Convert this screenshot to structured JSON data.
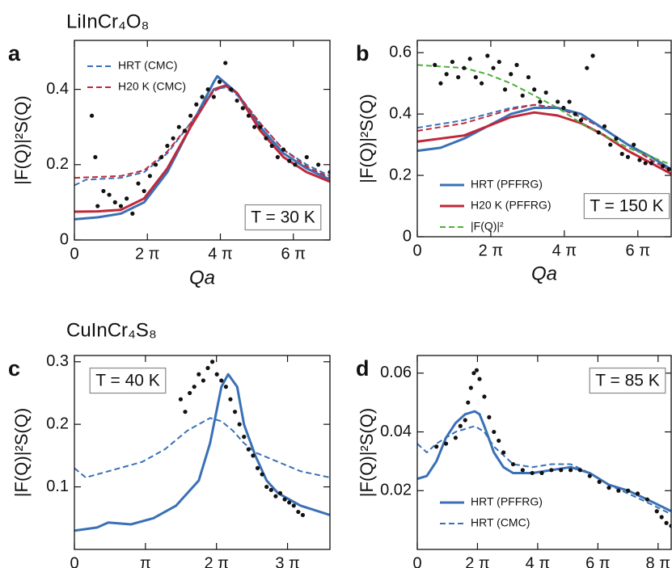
{
  "chart_data": [
    {
      "type": "line",
      "panel": "a",
      "title": "LiInCr₄O₈",
      "xlabel": "Qa",
      "ylabel": "|F(Q)|²S(Q)",
      "annotation": "T = 30 K",
      "legend": "upper left",
      "xlim": [
        0,
        22
      ],
      "ylim": [
        0,
        0.53
      ],
      "xticks": [
        0,
        {
          "value": 6.283,
          "label": "2 π"
        },
        {
          "value": 12.566,
          "label": "4 π"
        },
        {
          "value": 18.85,
          "label": "6 π"
        }
      ],
      "yticks": [
        0,
        0.2,
        0.4
      ],
      "series": [
        {
          "color": "#3a70b5",
          "style": "solid",
          "x": [
            0,
            2,
            4,
            6,
            8,
            10,
            12,
            12.3,
            14,
            16,
            18,
            20,
            22
          ],
          "values": [
            0.055,
            0.06,
            0.07,
            0.1,
            0.18,
            0.3,
            0.42,
            0.435,
            0.39,
            0.3,
            0.23,
            0.19,
            0.16
          ]
        },
        {
          "color": "#c0283a",
          "style": "solid",
          "x": [
            0,
            2,
            4,
            6,
            8,
            10,
            12,
            13,
            14,
            16,
            18,
            20,
            22
          ],
          "values": [
            0.075,
            0.076,
            0.08,
            0.11,
            0.19,
            0.3,
            0.4,
            0.41,
            0.39,
            0.29,
            0.22,
            0.18,
            0.155
          ]
        },
        {
          "name": "HRT (CMC)",
          "color": "#3a70b5",
          "style": "dashed",
          "x": [
            0,
            1,
            4,
            6,
            8,
            10,
            12,
            13,
            14,
            16,
            18,
            20,
            22
          ],
          "values": [
            0.145,
            0.16,
            0.165,
            0.18,
            0.23,
            0.31,
            0.4,
            0.405,
            0.385,
            0.31,
            0.24,
            0.2,
            0.17
          ]
        },
        {
          "name": "H20 K (CMC)",
          "color": "#c0283a",
          "style": "dashed",
          "x": [
            0,
            4,
            6,
            8,
            10,
            12,
            13,
            14,
            16,
            18,
            20,
            22
          ],
          "values": [
            0.165,
            0.17,
            0.185,
            0.235,
            0.31,
            0.395,
            0.41,
            0.39,
            0.31,
            0.24,
            0.195,
            0.165
          ]
        },
        {
          "color": "#111111",
          "style": "markers",
          "x": [
            1.5,
            1.8,
            2,
            2.5,
            3,
            3.5,
            4,
            4.5,
            5,
            5.5,
            6,
            6.5,
            7,
            7.5,
            8,
            8.5,
            9,
            9.5,
            10,
            10.5,
            11,
            11.5,
            12,
            12.5,
            13,
            13.5,
            14,
            14.5,
            15,
            15.5,
            16,
            16.5,
            17,
            17.5,
            18,
            18.5,
            19,
            20,
            21,
            22
          ],
          "values": [
            0.33,
            0.22,
            0.09,
            0.13,
            0.12,
            0.1,
            0.09,
            0.11,
            0.07,
            0.15,
            0.13,
            0.17,
            0.2,
            0.22,
            0.25,
            0.27,
            0.3,
            0.29,
            0.33,
            0.36,
            0.38,
            0.4,
            0.38,
            0.42,
            0.47,
            0.4,
            0.37,
            0.35,
            0.33,
            0.3,
            0.3,
            0.27,
            0.25,
            0.22,
            0.24,
            0.21,
            0.2,
            0.22,
            0.2,
            0.18
          ]
        }
      ]
    },
    {
      "type": "line",
      "panel": "b",
      "xlabel": "Qa",
      "ylabel": "|F(Q)|²S(Q)",
      "annotation": "T = 150 K",
      "legend": "lower left",
      "xlim": [
        0,
        21.7
      ],
      "ylim": [
        0,
        0.64
      ],
      "xticks": [
        0,
        {
          "value": 6.283,
          "label": "2 π"
        },
        {
          "value": 12.566,
          "label": "4 π"
        },
        {
          "value": 18.85,
          "label": "6 π"
        }
      ],
      "yticks": [
        0,
        0.2,
        0.4,
        0.6
      ],
      "series": [
        {
          "color": "#3a70b5",
          "style": "dashed",
          "x": [
            0,
            4,
            8,
            10,
            12,
            14,
            16,
            18,
            20,
            21.7
          ],
          "values": [
            0.355,
            0.38,
            0.42,
            0.43,
            0.42,
            0.39,
            0.35,
            0.3,
            0.25,
            0.215
          ]
        },
        {
          "color": "#c0283a",
          "style": "dashed",
          "x": [
            0,
            4,
            8,
            10,
            12,
            14,
            16,
            18,
            20,
            21.7
          ],
          "values": [
            0.345,
            0.37,
            0.415,
            0.43,
            0.42,
            0.39,
            0.35,
            0.3,
            0.25,
            0.215
          ]
        },
        {
          "name": "HRT (PFFRG)",
          "color": "#3a70b5",
          "style": "solid",
          "x": [
            0,
            2,
            4,
            6,
            8,
            10,
            12,
            14,
            16,
            18,
            20,
            21.7
          ],
          "values": [
            0.28,
            0.29,
            0.32,
            0.36,
            0.4,
            0.42,
            0.42,
            0.4,
            0.35,
            0.3,
            0.26,
            0.22
          ]
        },
        {
          "name": "H20 K (PFFRG)",
          "color": "#c0283a",
          "style": "solid",
          "x": [
            0,
            4,
            6,
            8,
            10,
            12,
            14,
            16,
            18,
            20,
            21.7
          ],
          "values": [
            0.31,
            0.33,
            0.36,
            0.39,
            0.405,
            0.395,
            0.37,
            0.33,
            0.28,
            0.24,
            0.205
          ]
        },
        {
          "name": "|F(Q)|²",
          "color": "#4caf3a",
          "style": "dashed",
          "x": [
            0,
            4,
            6,
            8,
            10,
            12,
            14,
            16,
            18,
            20,
            21.7
          ],
          "values": [
            0.56,
            0.55,
            0.53,
            0.5,
            0.46,
            0.42,
            0.37,
            0.33,
            0.29,
            0.26,
            0.235
          ]
        },
        {
          "color": "#111111",
          "style": "markers",
          "x": [
            1.5,
            2,
            2.5,
            3,
            3.5,
            4,
            4.5,
            5,
            5.5,
            6,
            6.5,
            7,
            7.5,
            8,
            8.5,
            9,
            9.5,
            10,
            10.5,
            11,
            12,
            12.5,
            13,
            13.5,
            14,
            14.5,
            15,
            15.5,
            16,
            16.5,
            17,
            17.5,
            18,
            18.5,
            19,
            19.5,
            20,
            21,
            21.5
          ],
          "values": [
            0.56,
            0.5,
            0.53,
            0.57,
            0.52,
            0.55,
            0.58,
            0.52,
            0.5,
            0.59,
            0.55,
            0.57,
            0.48,
            0.53,
            0.56,
            0.46,
            0.52,
            0.48,
            0.44,
            0.47,
            0.44,
            0.42,
            0.44,
            0.4,
            0.38,
            0.55,
            0.59,
            0.34,
            0.36,
            0.3,
            0.32,
            0.27,
            0.26,
            0.3,
            0.25,
            0.24,
            0.24,
            0.23,
            0.22
          ]
        }
      ]
    },
    {
      "type": "line",
      "panel": "c",
      "title": "CuInCr₄S₈",
      "ylabel": "|F(Q)|²S(Q)",
      "annotation": "T = 40 K",
      "xlim": [
        0,
        11.3
      ],
      "ylim": [
        0,
        0.31
      ],
      "xticks": [
        0,
        {
          "value": 3.1416,
          "label": "π"
        },
        {
          "value": 6.283,
          "label": "2 π"
        },
        {
          "value": 9.425,
          "label": "3 π"
        }
      ],
      "yticks": [
        0.1,
        0.2,
        0.3
      ],
      "series": [
        {
          "color": "#3a70b5",
          "style": "solid",
          "x": [
            0,
            1,
            1.5,
            2.5,
            3.5,
            4.5,
            5.5,
            6,
            6.5,
            6.8,
            7.2,
            7.5,
            8,
            8.5,
            9,
            10,
            11.3
          ],
          "values": [
            0.03,
            0.035,
            0.043,
            0.04,
            0.05,
            0.07,
            0.11,
            0.17,
            0.26,
            0.28,
            0.26,
            0.2,
            0.15,
            0.11,
            0.09,
            0.07,
            0.055
          ]
        },
        {
          "color": "#3a70b5",
          "style": "dashed",
          "x": [
            0,
            0.5,
            1,
            2,
            3,
            4,
            5,
            6,
            6.5,
            7,
            7.5,
            8,
            9,
            10,
            11.3
          ],
          "values": [
            0.13,
            0.115,
            0.12,
            0.13,
            0.14,
            0.16,
            0.19,
            0.21,
            0.205,
            0.19,
            0.17,
            0.155,
            0.14,
            0.125,
            0.115
          ]
        },
        {
          "color": "#111111",
          "style": "markers",
          "x": [
            4.7,
            4.9,
            5.1,
            5.3,
            5.5,
            5.7,
            5.9,
            6.1,
            6.3,
            6.5,
            6.7,
            6.9,
            7.1,
            7.3,
            7.5,
            7.7,
            7.9,
            8.1,
            8.3,
            8.5,
            8.7,
            8.9,
            9.1,
            9.3,
            9.5,
            9.7,
            9.9,
            10.1
          ],
          "values": [
            0.24,
            0.22,
            0.25,
            0.26,
            0.28,
            0.27,
            0.29,
            0.3,
            0.28,
            0.27,
            0.26,
            0.24,
            0.22,
            0.2,
            0.18,
            0.16,
            0.15,
            0.13,
            0.12,
            0.1,
            0.095,
            0.085,
            0.09,
            0.08,
            0.075,
            0.07,
            0.06,
            0.055
          ]
        }
      ]
    },
    {
      "type": "line",
      "panel": "d",
      "ylabel": "|F(Q)|²S(Q)",
      "annotation": "T = 85 K",
      "legend": "lower left",
      "xlim": [
        0,
        26.5
      ],
      "ylim": [
        0,
        0.066
      ],
      "xticks": [
        0,
        {
          "value": 6.283,
          "label": "2 π"
        },
        {
          "value": 12.566,
          "label": "4 π"
        },
        {
          "value": 18.85,
          "label": "6 π"
        },
        {
          "value": 25.133,
          "label": "8 π"
        }
      ],
      "yticks": [
        0.02,
        0.04,
        0.06
      ],
      "series": [
        {
          "name": "HRT (PFFRG)",
          "color": "#3a70b5",
          "style": "solid",
          "x": [
            0,
            1,
            2,
            3,
            4,
            5,
            6,
            6.5,
            7,
            8,
            9,
            10,
            12,
            14,
            16,
            18,
            20,
            22,
            24,
            26.5
          ],
          "values": [
            0.024,
            0.025,
            0.03,
            0.038,
            0.043,
            0.046,
            0.047,
            0.046,
            0.042,
            0.033,
            0.028,
            0.026,
            0.026,
            0.027,
            0.028,
            0.026,
            0.022,
            0.02,
            0.017,
            0.013
          ]
        },
        {
          "name": "HRT (CMC)",
          "color": "#3a70b5",
          "style": "dashed",
          "x": [
            0,
            1,
            2,
            4,
            6,
            7,
            8,
            10,
            12,
            14,
            16,
            18,
            20,
            22,
            24,
            26.5
          ],
          "values": [
            0.036,
            0.033,
            0.036,
            0.04,
            0.042,
            0.04,
            0.035,
            0.029,
            0.028,
            0.029,
            0.029,
            0.026,
            0.022,
            0.019,
            0.016,
            0.012
          ]
        },
        {
          "color": "#111111",
          "style": "markers",
          "x": [
            2,
            3,
            4,
            4.5,
            5,
            5.3,
            5.6,
            5.9,
            6.2,
            6.5,
            7,
            7.5,
            8,
            8.5,
            9,
            10,
            11,
            12,
            13,
            14,
            15,
            16,
            17,
            18,
            19,
            20,
            21,
            22,
            23,
            24,
            25,
            25.5,
            26,
            26.5
          ],
          "values": [
            0.035,
            0.036,
            0.038,
            0.042,
            0.044,
            0.05,
            0.055,
            0.06,
            0.061,
            0.058,
            0.052,
            0.045,
            0.04,
            0.037,
            0.033,
            0.029,
            0.027,
            0.026,
            0.026,
            0.027,
            0.027,
            0.027,
            0.027,
            0.025,
            0.023,
            0.021,
            0.02,
            0.02,
            0.019,
            0.017,
            0.013,
            0.011,
            0.009,
            0.008
          ]
        }
      ]
    }
  ]
}
